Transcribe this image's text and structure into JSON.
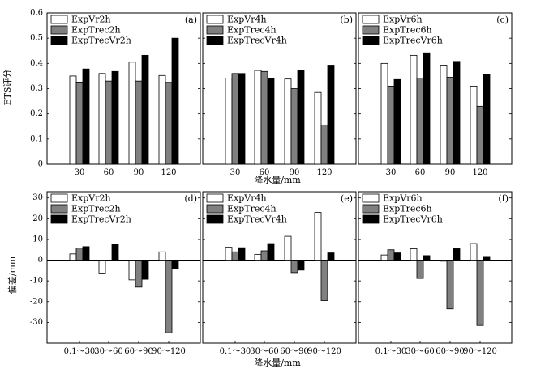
{
  "figure": {
    "top_ylabel": "ETS评分",
    "top_xlabel": "降水量/mm",
    "bottom_ylabel": "偏差/mm",
    "bottom_xlabel": "降水量/mm"
  },
  "colors": {
    "series_fills": [
      "#ffffff",
      "#808080",
      "#000000"
    ],
    "stroke": "#000000"
  },
  "chart_data": [
    {
      "type": "bar",
      "panel": "(a)",
      "categories": [
        "30",
        "60",
        "90",
        "120"
      ],
      "ylim": [
        0,
        0.6
      ],
      "yticks": [
        0,
        0.1,
        0.2,
        0.3,
        0.4,
        0.5,
        0.6
      ],
      "legend": "top-left",
      "series": [
        {
          "name": "ExpVr2h",
          "values": [
            0.35,
            0.36,
            0.405,
            0.352
          ]
        },
        {
          "name": "ExpTrec2h",
          "values": [
            0.326,
            0.33,
            0.33,
            0.325
          ]
        },
        {
          "name": "ExpTrecVr2h",
          "values": [
            0.378,
            0.368,
            0.432,
            0.5
          ]
        }
      ]
    },
    {
      "type": "bar",
      "panel": "(b)",
      "categories": [
        "30",
        "60",
        "90",
        "120"
      ],
      "ylim": [
        0,
        0.6
      ],
      "yticks": [
        0,
        0.1,
        0.2,
        0.3,
        0.4,
        0.5,
        0.6
      ],
      "legend": "top-left",
      "series": [
        {
          "name": "ExpVr4h",
          "values": [
            0.342,
            0.372,
            0.338,
            0.285
          ]
        },
        {
          "name": "ExpTrec4h",
          "values": [
            0.36,
            0.368,
            0.3,
            0.156
          ]
        },
        {
          "name": "ExpTrecVr4h",
          "values": [
            0.36,
            0.34,
            0.374,
            0.393
          ]
        }
      ]
    },
    {
      "type": "bar",
      "panel": "(c)",
      "categories": [
        "30",
        "60",
        "90",
        "120"
      ],
      "ylim": [
        0,
        0.6
      ],
      "yticks": [
        0,
        0.1,
        0.2,
        0.3,
        0.4,
        0.5,
        0.6
      ],
      "legend": "top-left",
      "series": [
        {
          "name": "ExpVr6h",
          "values": [
            0.4,
            0.432,
            0.393,
            0.31
          ]
        },
        {
          "name": "ExpTrec6h",
          "values": [
            0.31,
            0.342,
            0.345,
            0.23
          ]
        },
        {
          "name": "ExpTrecVr6h",
          "values": [
            0.336,
            0.442,
            0.408,
            0.358
          ]
        }
      ]
    },
    {
      "type": "bar",
      "panel": "(d)",
      "categories": [
        "0.1～30",
        "30～60",
        "60～90",
        "90～120"
      ],
      "ylim": [
        -40,
        33
      ],
      "yticks": [
        -30,
        -20,
        -10,
        0,
        10,
        20,
        30
      ],
      "legend": "top-left",
      "series": [
        {
          "name": "ExpVr2h",
          "values": [
            3.0,
            -6.2,
            -9.5,
            4.0
          ]
        },
        {
          "name": "ExpTrec2h",
          "values": [
            5.8,
            0,
            -13.0,
            -35.0
          ]
        },
        {
          "name": "ExpTrecVr2h",
          "values": [
            6.5,
            7.5,
            -9.2,
            -4.3
          ]
        }
      ]
    },
    {
      "type": "bar",
      "panel": "(e)",
      "categories": [
        "0.1～30",
        "30～60",
        "60～90",
        "90～120"
      ],
      "ylim": [
        -40,
        33
      ],
      "yticks": [
        -30,
        -20,
        -10,
        0,
        10,
        20,
        30
      ],
      "legend": "top-left",
      "series": [
        {
          "name": "ExpVr4h",
          "values": [
            6.2,
            2.8,
            11.5,
            23.0
          ]
        },
        {
          "name": "ExpTrec4h",
          "values": [
            4.0,
            4.5,
            -6.0,
            -19.5
          ]
        },
        {
          "name": "ExpTrecVr4h",
          "values": [
            6.0,
            8.0,
            -4.8,
            3.5
          ]
        }
      ]
    },
    {
      "type": "bar",
      "panel": "(f)",
      "categories": [
        "0.1～30",
        "30～60",
        "60～90",
        "90～120"
      ],
      "ylim": [
        -40,
        33
      ],
      "yticks": [
        -30,
        -20,
        -10,
        0,
        10,
        20,
        30
      ],
      "legend": "top-left",
      "series": [
        {
          "name": "ExpVr6h",
          "values": [
            2.5,
            5.5,
            -0.5,
            8.0
          ]
        },
        {
          "name": "ExpTrec6h",
          "values": [
            5.0,
            -8.8,
            -23.5,
            -31.5
          ]
        },
        {
          "name": "ExpTrecVr6h",
          "values": [
            3.5,
            2.2,
            5.5,
            1.8
          ]
        }
      ]
    }
  ]
}
